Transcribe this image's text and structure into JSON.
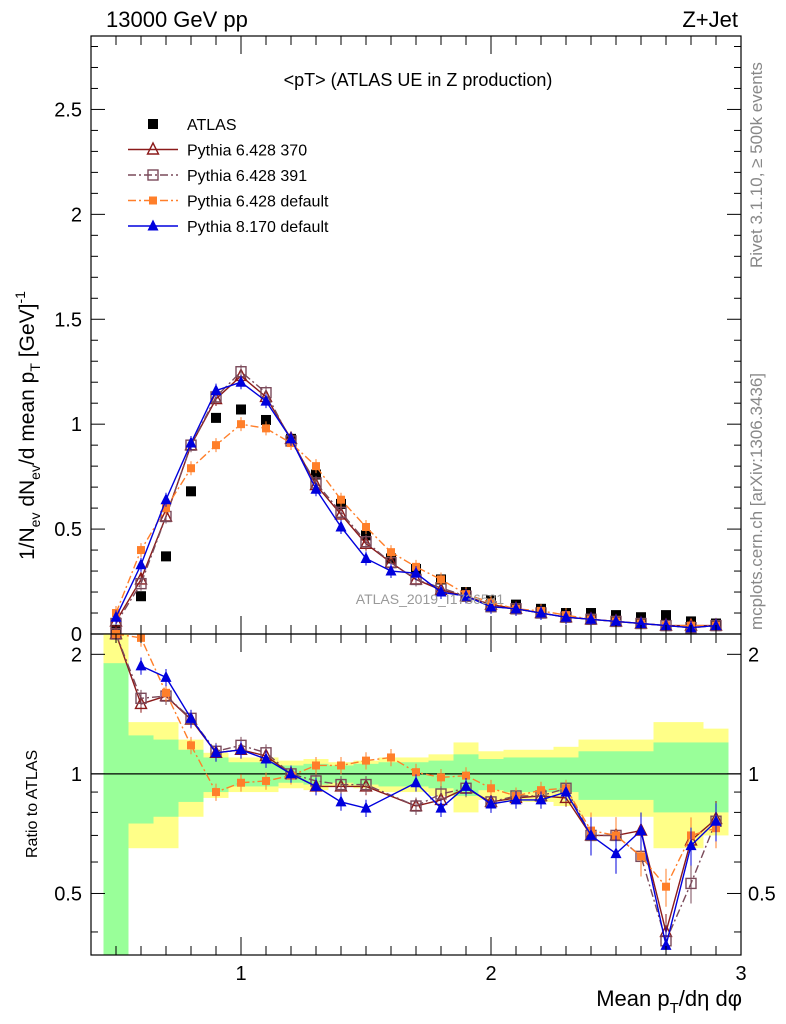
{
  "header": {
    "left": "13000 GeV pp",
    "right": "Z+Jet"
  },
  "side_text": {
    "rivet": "Rivet 3.1.10, ≥ 500k events",
    "mcplots": "mcplots.cern.ch [arXiv:1306.3436]"
  },
  "chart_data": [
    {
      "type": "scatter",
      "title": "<pT> (ATLAS UE in Z production)",
      "watermark": "ATLAS_2019_I1736531",
      "xlabel": "Mean p_T/dη dφ",
      "ylabel": "1/N_ev dN_ev/d mean p_T [GeV]^-1",
      "xlim": [
        0.4,
        3.0
      ],
      "ylim": [
        0,
        2.85
      ],
      "x_ticks": [
        "1",
        "2",
        "3"
      ],
      "y_ticks": [
        "0",
        "0.5",
        "1",
        "1.5",
        "2",
        "2.5"
      ],
      "legend_position": "top-left",
      "x": [
        0.5,
        0.6,
        0.7,
        0.8,
        0.9,
        1.0,
        1.1,
        1.2,
        1.3,
        1.4,
        1.5,
        1.6,
        1.7,
        1.8,
        1.9,
        2.0,
        2.1,
        2.2,
        2.3,
        2.4,
        2.5,
        2.6,
        2.7,
        2.8,
        2.9
      ],
      "series": [
        {
          "name": "ATLAS",
          "color": "#000000",
          "marker": "filled-square",
          "line": "none",
          "values": [
            0.02,
            0.18,
            0.37,
            0.68,
            1.03,
            1.07,
            1.02,
            0.93,
            0.76,
            0.62,
            0.47,
            0.36,
            0.31,
            0.26,
            0.2,
            0.16,
            0.14,
            0.12,
            0.1,
            0.1,
            0.09,
            0.08,
            0.09,
            0.06,
            0.05
          ]
        },
        {
          "name": "Pythia 6.428 370",
          "color": "#8b1a1a",
          "marker": "open-triangle",
          "line": "solid",
          "values": [
            0.06,
            0.26,
            0.56,
            0.9,
            1.12,
            1.23,
            1.13,
            0.93,
            0.71,
            0.57,
            0.43,
            0.34,
            0.26,
            0.21,
            0.18,
            0.14,
            0.12,
            0.1,
            0.08,
            0.07,
            0.06,
            0.05,
            0.04,
            0.04,
            0.04
          ]
        },
        {
          "name": "Pythia 6.428 391",
          "color": "#7a4a5a",
          "marker": "open-square",
          "line": "dashdot",
          "values": [
            0.05,
            0.24,
            0.56,
            0.9,
            1.13,
            1.25,
            1.15,
            0.92,
            0.72,
            0.58,
            0.44,
            0.34,
            0.26,
            0.22,
            0.18,
            0.13,
            0.12,
            0.1,
            0.08,
            0.07,
            0.06,
            0.05,
            0.04,
            0.03,
            0.04
          ]
        },
        {
          "name": "Pythia 6.428 default",
          "color": "#ff7f2a",
          "marker": "filled-square-small",
          "line": "dashdot",
          "values": [
            0.1,
            0.4,
            0.6,
            0.79,
            0.9,
            1.0,
            0.98,
            0.91,
            0.8,
            0.64,
            0.51,
            0.39,
            0.32,
            0.26,
            0.19,
            0.15,
            0.12,
            0.11,
            0.09,
            0.07,
            0.06,
            0.05,
            0.04,
            0.04,
            0.04
          ]
        },
        {
          "name": "Pythia 8.170 default",
          "color": "#0000dd",
          "marker": "filled-triangle",
          "line": "solid",
          "values": [
            0.08,
            0.33,
            0.64,
            0.91,
            1.16,
            1.2,
            1.11,
            0.93,
            0.69,
            0.51,
            0.36,
            0.3,
            0.29,
            0.2,
            0.18,
            0.13,
            0.12,
            0.1,
            0.08,
            0.07,
            0.06,
            0.05,
            0.04,
            0.03,
            0.04
          ]
        }
      ]
    },
    {
      "type": "line",
      "ylabel": "Ratio to ATLAS",
      "xlim": [
        0.4,
        3.0
      ],
      "ylim": [
        0.35,
        2.25
      ],
      "x_ticks": [
        "1",
        "2",
        "3"
      ],
      "y_ticks": [
        "0.5",
        "1",
        "2"
      ],
      "reference_line": 1,
      "x": [
        0.5,
        0.6,
        0.7,
        0.8,
        0.9,
        1.0,
        1.1,
        1.2,
        1.3,
        1.4,
        1.5,
        1.6,
        1.7,
        1.8,
        1.9,
        2.0,
        2.1,
        2.2,
        2.3,
        2.4,
        2.5,
        2.6,
        2.7,
        2.8,
        2.9
      ],
      "band_outer": {
        "color": "#ffff88",
        "low": [
          0.35,
          0.65,
          0.65,
          0.78,
          0.87,
          0.9,
          0.9,
          0.92,
          0.91,
          0.93,
          0.92,
          0.9,
          0.9,
          0.88,
          0.8,
          0.86,
          0.85,
          0.85,
          0.83,
          0.78,
          0.78,
          0.78,
          0.65,
          0.65,
          0.7
        ],
        "high": [
          2.25,
          1.35,
          1.35,
          1.22,
          1.13,
          1.1,
          1.1,
          1.08,
          1.09,
          1.07,
          1.08,
          1.1,
          1.1,
          1.12,
          1.2,
          1.14,
          1.15,
          1.15,
          1.17,
          1.22,
          1.22,
          1.22,
          1.35,
          1.35,
          1.3
        ]
      },
      "band_inner": {
        "color": "#99ff99",
        "low": [
          0.35,
          0.75,
          0.78,
          0.85,
          0.9,
          0.93,
          0.93,
          0.95,
          0.94,
          0.95,
          0.94,
          0.93,
          0.93,
          0.92,
          0.88,
          0.91,
          0.9,
          0.9,
          0.9,
          0.86,
          0.86,
          0.86,
          0.8,
          0.8,
          0.8
        ],
        "high": [
          1.9,
          1.25,
          1.22,
          1.15,
          1.1,
          1.07,
          1.07,
          1.05,
          1.06,
          1.05,
          1.06,
          1.07,
          1.07,
          1.08,
          1.12,
          1.09,
          1.1,
          1.1,
          1.1,
          1.14,
          1.14,
          1.14,
          1.2,
          1.2,
          1.2
        ]
      },
      "series": [
        {
          "name": "Pythia 6.428 370",
          "color": "#8b1a1a",
          "marker": "open-triangle",
          "line": "solid",
          "values": [
            2.25,
            1.5,
            1.57,
            1.37,
            1.13,
            1.15,
            1.11,
            1.0,
            0.93,
            0.93,
            0.93,
            null,
            0.83,
            0.86,
            0.92,
            0.85,
            0.87,
            0.88,
            0.87,
            0.7,
            0.7,
            0.72,
            0.4,
            0.68,
            0.77
          ]
        },
        {
          "name": "Pythia 6.428 391",
          "color": "#7a4a5a",
          "marker": "open-square",
          "line": "dashdot",
          "values": [
            2.25,
            1.55,
            1.57,
            1.38,
            1.14,
            1.18,
            1.13,
            1.0,
            0.96,
            0.94,
            0.94,
            null,
            0.83,
            0.89,
            0.92,
            0.85,
            0.88,
            0.88,
            0.92,
            0.7,
            0.7,
            0.62,
            0.38,
            0.53,
            0.76
          ]
        },
        {
          "name": "Pythia 6.428 default",
          "color": "#ff7f2a",
          "marker": "filled-square-small",
          "line": "dashdot",
          "values": [
            2.25,
            2.2,
            1.6,
            1.18,
            0.9,
            0.95,
            0.96,
            0.99,
            1.05,
            1.05,
            1.08,
            1.1,
            1.01,
            0.98,
            0.99,
            0.92,
            0.88,
            0.91,
            0.92,
            0.72,
            0.7,
            0.62,
            0.52,
            0.7,
            0.73
          ]
        },
        {
          "name": "Pythia 8.170 default",
          "color": "#0000dd",
          "marker": "filled-triangle",
          "line": "solid",
          "values": [
            null,
            1.87,
            1.75,
            1.38,
            1.13,
            1.15,
            1.09,
            1.0,
            0.93,
            0.85,
            0.82,
            null,
            0.95,
            0.82,
            0.93,
            0.84,
            0.86,
            0.86,
            0.9,
            0.7,
            0.63,
            0.72,
            0.37,
            0.66,
            0.76
          ]
        }
      ]
    }
  ]
}
